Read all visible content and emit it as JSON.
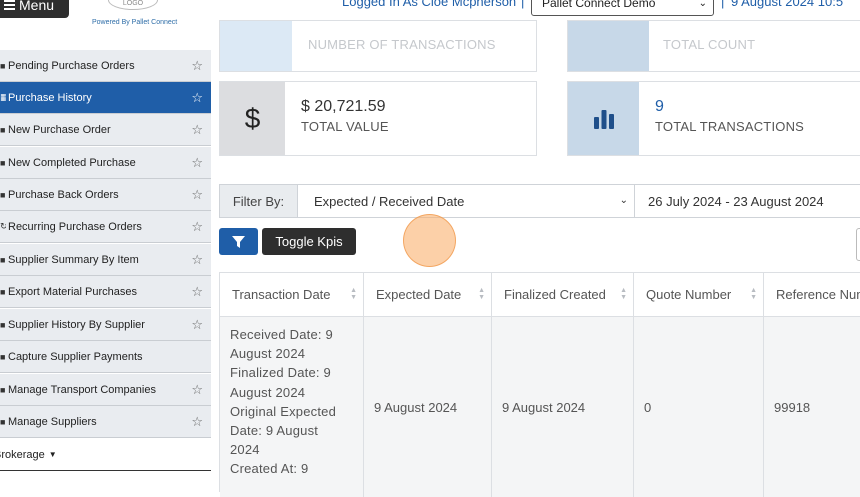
{
  "header": {
    "menu_label": "Menu",
    "logo_text": "LOGO",
    "powered_by": "Powered By Pallet Connect",
    "logged_in": "Logged In As Cloe Mcpherson",
    "separator": "|",
    "company": "Pallet Connect Demo",
    "date": "9 August 2024 10:5"
  },
  "sidebar": {
    "items": [
      {
        "label": "Pending Purchase Orders",
        "icon": "cart-icon",
        "starred": true
      },
      {
        "label": "Purchase History",
        "icon": "list-icon",
        "starred": true,
        "active": true
      },
      {
        "label": "New Purchase Order",
        "icon": "file-icon",
        "starred": true
      },
      {
        "label": "New Completed Purchase",
        "icon": "truck-icon",
        "starred": true
      },
      {
        "label": "Purchase Back Orders",
        "icon": "cart-icon",
        "starred": true
      },
      {
        "label": "Recurring Purchase Orders",
        "icon": "refresh-icon",
        "starred": true
      },
      {
        "label": "Supplier Summary By Item",
        "icon": "chart-icon",
        "starred": true
      },
      {
        "label": "Export Material Purchases",
        "icon": "export-icon",
        "starred": true
      },
      {
        "label": "Supplier History By Supplier",
        "icon": "chart-icon",
        "starred": true
      },
      {
        "label": "Capture Supplier Payments",
        "icon": "money-icon",
        "starred": false
      },
      {
        "label": "Manage Transport Companies",
        "icon": "truck-icon",
        "starred": true
      },
      {
        "label": "Manage Suppliers",
        "icon": "users-icon",
        "starred": true
      }
    ],
    "brokerage_label": "Brokerage"
  },
  "kpis": {
    "top_left_label": "NUMBER OF TRANSACTIONS",
    "top_right_label": "TOTAL COUNT",
    "total_value": "$ 20,721.59",
    "total_value_label": "TOTAL VALUE",
    "total_value_symbol": "$",
    "total_transactions": "9",
    "total_transactions_label": "TOTAL TRANSACTIONS"
  },
  "filter": {
    "label": "Filter By:",
    "selected": "Expected / Received Date",
    "date_range": "26 July 2024 - 23 August 2024",
    "toggle_kpis": "Toggle Kpis"
  },
  "table": {
    "columns": [
      "Transaction Date",
      "Expected Date",
      "Finalized Created",
      "Quote Number",
      "Reference Num"
    ],
    "rows": [
      {
        "transaction_lines": [
          "Received Date: 9",
          "August 2024",
          "Finalized Date: 9",
          "August 2024",
          "Original Expected",
          "Date: 9 August",
          "2024",
          "Created At: 9"
        ],
        "expected_date": "9 August 2024",
        "finalized_created": "9 August 2024",
        "quote_number": "0",
        "reference": "99918"
      }
    ]
  },
  "colors": {
    "primary": "#1f5ea8",
    "dark": "#2e2e2e",
    "sidebar_bg": "#e9ecf0",
    "kpi_tile_grey": "#dcdde0",
    "kpi_tile_blue": "#c7d8e8"
  }
}
